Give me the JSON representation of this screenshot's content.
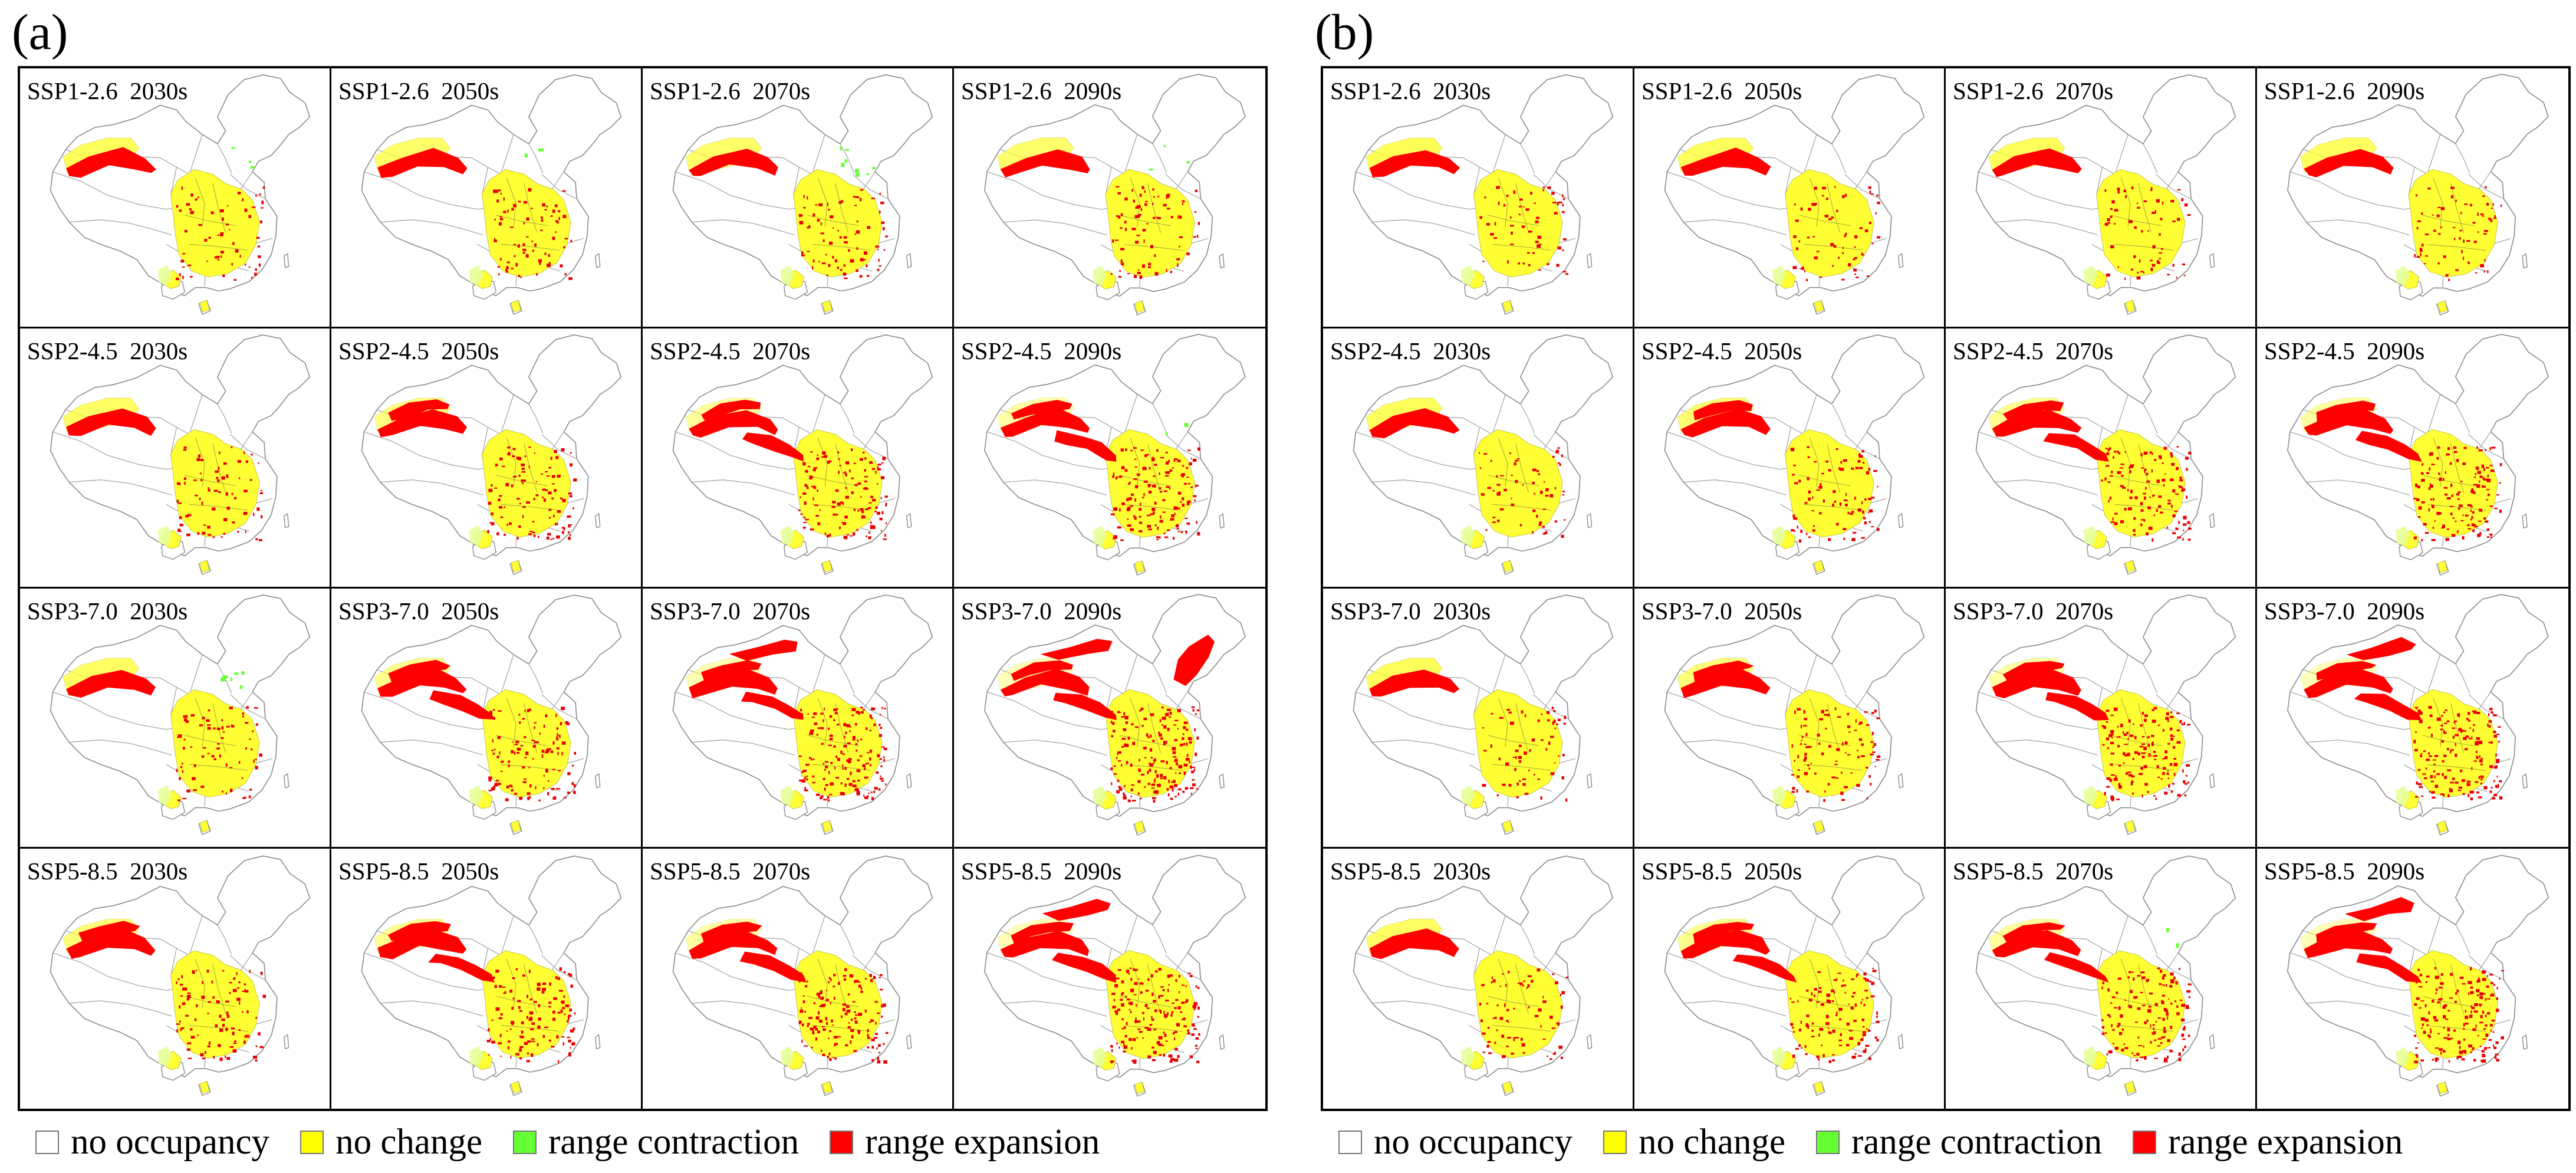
{
  "panels": [
    {
      "id": "a",
      "label": "(a)",
      "rows": [
        {
          "ssp": "SSP1-2.6",
          "cells": [
            {
              "title": "SSP1-2.6  2030s",
              "exp": 0.1,
              "con": 0.02
            },
            {
              "title": "SSP1-2.6  2050s",
              "exp": 0.16,
              "con": 0.01
            },
            {
              "title": "SSP1-2.6  2070s",
              "exp": 0.16,
              "con": 0.05
            },
            {
              "title": "SSP1-2.6  2090s",
              "exp": 0.18,
              "con": 0.02
            }
          ]
        },
        {
          "ssp": "SSP2-4.5",
          "cells": [
            {
              "title": "SSP2-4.5  2030s",
              "exp": 0.14,
              "con": 0.0
            },
            {
              "title": "SSP2-4.5  2050s",
              "exp": 0.28,
              "con": 0.0
            },
            {
              "title": "SSP2-4.5  2070s",
              "exp": 0.42,
              "con": 0.0
            },
            {
              "title": "SSP2-4.5  2090s",
              "exp": 0.46,
              "con": 0.01
            }
          ]
        },
        {
          "ssp": "SSP3-7.0",
          "cells": [
            {
              "title": "SSP3-7.0  2030s",
              "exp": 0.14,
              "con": 0.04
            },
            {
              "title": "SSP3-7.0  2050s",
              "exp": 0.34,
              "con": 0.0
            },
            {
              "title": "SSP3-7.0  2070s",
              "exp": 0.52,
              "con": 0.0
            },
            {
              "title": "SSP3-7.0  2090s",
              "exp": 0.6,
              "con": 0.0
            }
          ]
        },
        {
          "ssp": "SSP5-8.5",
          "cells": [
            {
              "title": "SSP5-8.5  2030s",
              "exp": 0.24,
              "con": 0.0
            },
            {
              "title": "SSP5-8.5  2050s",
              "exp": 0.36,
              "con": 0.0
            },
            {
              "title": "SSP5-8.5  2070s",
              "exp": 0.44,
              "con": 0.0
            },
            {
              "title": "SSP5-8.5  2090s",
              "exp": 0.56,
              "con": 0.0
            }
          ]
        }
      ],
      "legend": [
        {
          "label": "no occupancy",
          "color": "#ffffff"
        },
        {
          "label": "no change",
          "color": "#ffff00"
        },
        {
          "label": "range contraction",
          "color": "#66ff33"
        },
        {
          "label": "range expansion",
          "color": "#ff0000"
        }
      ]
    },
    {
      "id": "b",
      "label": "(b)",
      "rows": [
        {
          "ssp": "SSP1-2.6",
          "cells": [
            {
              "title": "SSP1-2.6  2030s",
              "exp": 0.08,
              "con": 0.0
            },
            {
              "title": "SSP1-2.6  2050s",
              "exp": 0.1,
              "con": 0.0
            },
            {
              "title": "SSP1-2.6  2070s",
              "exp": 0.1,
              "con": 0.0
            },
            {
              "title": "SSP1-2.6  2090s",
              "exp": 0.12,
              "con": 0.0
            }
          ]
        },
        {
          "ssp": "SSP2-4.5",
          "cells": [
            {
              "title": "SSP2-4.5  2030s",
              "exp": 0.1,
              "con": 0.0
            },
            {
              "title": "SSP2-4.5  2050s",
              "exp": 0.2,
              "con": 0.0
            },
            {
              "title": "SSP2-4.5  2070s",
              "exp": 0.36,
              "con": 0.0
            },
            {
              "title": "SSP2-4.5  2090s",
              "exp": 0.44,
              "con": 0.0
            }
          ]
        },
        {
          "ssp": "SSP3-7.0",
          "cells": [
            {
              "title": "SSP3-7.0  2030s",
              "exp": 0.1,
              "con": 0.0
            },
            {
              "title": "SSP3-7.0  2050s",
              "exp": 0.24,
              "con": 0.0
            },
            {
              "title": "SSP3-7.0  2070s",
              "exp": 0.46,
              "con": 0.0
            },
            {
              "title": "SSP3-7.0  2090s",
              "exp": 0.56,
              "con": 0.0
            }
          ]
        },
        {
          "ssp": "SSP5-8.5",
          "cells": [
            {
              "title": "SSP5-8.5  2030s",
              "exp": 0.14,
              "con": 0.0
            },
            {
              "title": "SSP5-8.5  2050s",
              "exp": 0.34,
              "con": 0.0
            },
            {
              "title": "SSP5-8.5  2070s",
              "exp": 0.42,
              "con": 0.01
            },
            {
              "title": "SSP5-8.5  2090s",
              "exp": 0.58,
              "con": 0.0
            }
          ]
        }
      ],
      "legend": [
        {
          "label": "no occupancy",
          "color": "#ffffff"
        },
        {
          "label": "no change",
          "color": "#ffff00"
        },
        {
          "label": "range contraction",
          "color": "#66ff33"
        },
        {
          "label": "range expansion",
          "color": "#ff0000"
        }
      ]
    }
  ]
}
